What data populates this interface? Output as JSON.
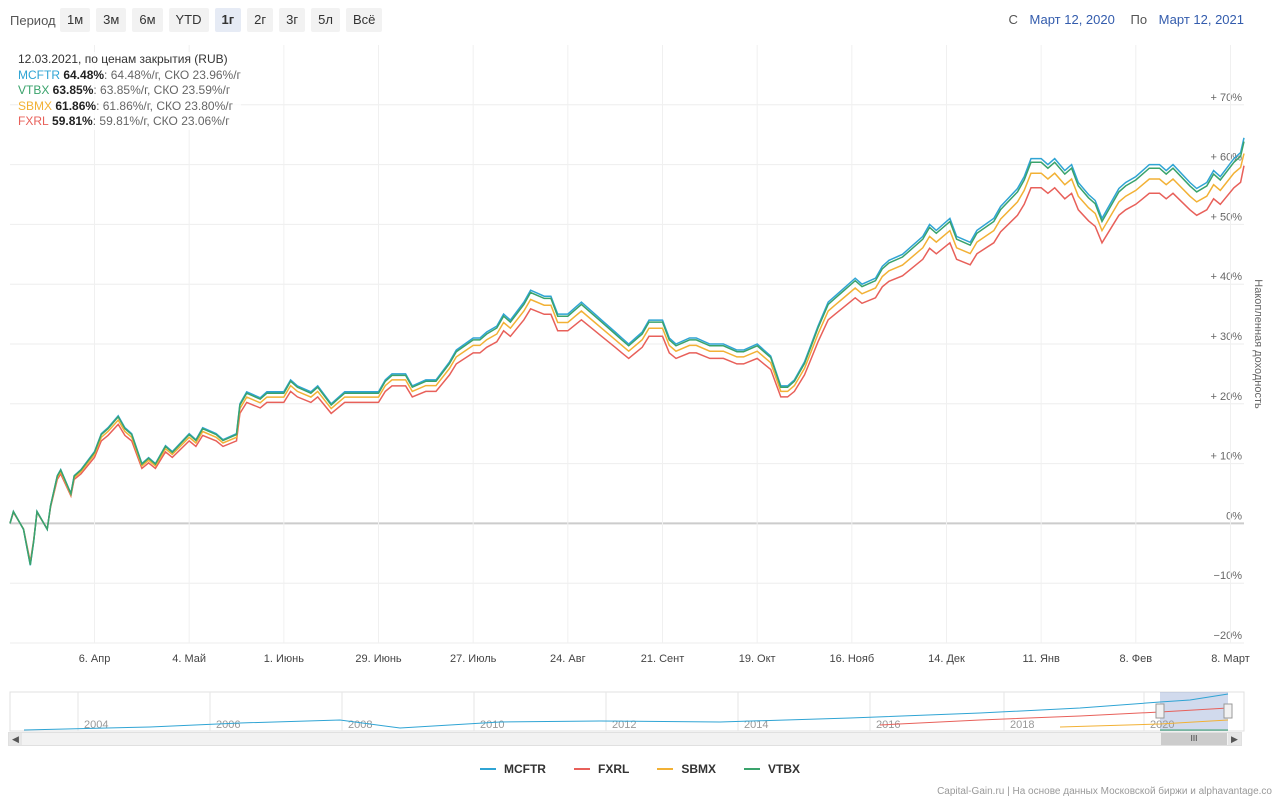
{
  "toolbar": {
    "period_label": "Период",
    "buttons": [
      "1м",
      "3м",
      "6м",
      "YTD",
      "1г",
      "2г",
      "3г",
      "5л",
      "Всё"
    ],
    "active": "1г",
    "from_label": "С",
    "from_date": "Март 12, 2020",
    "to_label": "По",
    "to_date": "Март 12, 2021"
  },
  "info": {
    "header": "12.03.2021, по ценам закрытия (RUB)",
    "rows": [
      {
        "name": "MCFTR",
        "value": "64.48%",
        "rest": ": 64.48%/г, СКО 23.96%/г",
        "color": "#2fa4d4"
      },
      {
        "name": "VTBX",
        "value": "63.85%",
        "rest": ": 63.85%/г, СКО 23.59%/г",
        "color": "#3aa36c"
      },
      {
        "name": "SBMX",
        "value": "61.86%",
        "rest": ": 61.86%/г, СКО 23.80%/г",
        "color": "#f2b135"
      },
      {
        "name": "FXRL",
        "value": "59.81%",
        "rest": ": 59.81%/г, СКО 23.06%/г",
        "color": "#e8605a"
      }
    ]
  },
  "navigator": {
    "year_labels": [
      "2004",
      "2006",
      "2008",
      "2010",
      "2012",
      "2014",
      "2016",
      "2018",
      "2020"
    ],
    "scroll_thumb": "III",
    "scroll_left": "◀",
    "scroll_right": "▶"
  },
  "legend": [
    {
      "name": "MCFTR",
      "color": "#2fa4d4"
    },
    {
      "name": "FXRL",
      "color": "#e8605a"
    },
    {
      "name": "SBMX",
      "color": "#f2b135"
    },
    {
      "name": "VTBX",
      "color": "#3aa36c"
    }
  ],
  "credits": "Capital-Gain.ru | На основе данных Московской биржи и alphavantage.co",
  "chart_data": {
    "type": "line",
    "ylabel": "Накопленная доходность",
    "ylim": [
      -20,
      80
    ],
    "y_ticks": [
      -20,
      -10,
      0,
      10,
      20,
      30,
      40,
      50,
      60,
      70
    ],
    "y_tick_labels": [
      "−20%",
      "−10%",
      "0%",
      "+ 10%",
      "+ 20%",
      "+ 30%",
      "+ 40%",
      "+ 50%",
      "+ 60%",
      "+ 70%"
    ],
    "x_range": [
      "2020-03-12",
      "2021-03-12"
    ],
    "x_ticks": [
      {
        "date": "2020-04-06",
        "label": "6. Апр"
      },
      {
        "date": "2020-05-04",
        "label": "4. Май"
      },
      {
        "date": "2020-06-01",
        "label": "1. Июнь"
      },
      {
        "date": "2020-06-29",
        "label": "29. Июнь"
      },
      {
        "date": "2020-07-27",
        "label": "27. Июль"
      },
      {
        "date": "2020-08-24",
        "label": "24. Авг"
      },
      {
        "date": "2020-09-21",
        "label": "21. Сент"
      },
      {
        "date": "2020-10-19",
        "label": "19. Окт"
      },
      {
        "date": "2020-11-16",
        "label": "16. Нояб"
      },
      {
        "date": "2020-12-14",
        "label": "14. Дек"
      },
      {
        "date": "2021-01-11",
        "label": "11. Янв"
      },
      {
        "date": "2021-02-08",
        "label": "8. Фев"
      },
      {
        "date": "2021-03-08",
        "label": "8. Март"
      }
    ],
    "base": [
      [
        "2020-03-12",
        0
      ],
      [
        "2020-03-13",
        2
      ],
      [
        "2020-03-16",
        -1
      ],
      [
        "2020-03-18",
        -7
      ],
      [
        "2020-03-19",
        -3
      ],
      [
        "2020-03-20",
        2
      ],
      [
        "2020-03-23",
        -1
      ],
      [
        "2020-03-24",
        3
      ],
      [
        "2020-03-26",
        8
      ],
      [
        "2020-03-27",
        9
      ],
      [
        "2020-03-30",
        5
      ],
      [
        "2020-03-31",
        8
      ],
      [
        "2020-04-02",
        9
      ],
      [
        "2020-04-06",
        12
      ],
      [
        "2020-04-08",
        15
      ],
      [
        "2020-04-10",
        16
      ],
      [
        "2020-04-13",
        18
      ],
      [
        "2020-04-15",
        16
      ],
      [
        "2020-04-17",
        15
      ],
      [
        "2020-04-20",
        10
      ],
      [
        "2020-04-22",
        11
      ],
      [
        "2020-04-24",
        10
      ],
      [
        "2020-04-27",
        13
      ],
      [
        "2020-04-29",
        12
      ],
      [
        "2020-05-04",
        15
      ],
      [
        "2020-05-06",
        14
      ],
      [
        "2020-05-08",
        16
      ],
      [
        "2020-05-12",
        15
      ],
      [
        "2020-05-14",
        14
      ],
      [
        "2020-05-18",
        15
      ],
      [
        "2020-05-19",
        20
      ],
      [
        "2020-05-21",
        22
      ],
      [
        "2020-05-25",
        21
      ],
      [
        "2020-05-27",
        22
      ],
      [
        "2020-06-01",
        22
      ],
      [
        "2020-06-03",
        24
      ],
      [
        "2020-06-05",
        23
      ],
      [
        "2020-06-09",
        22
      ],
      [
        "2020-06-11",
        23
      ],
      [
        "2020-06-15",
        20
      ],
      [
        "2020-06-17",
        21
      ],
      [
        "2020-06-19",
        22
      ],
      [
        "2020-06-23",
        22
      ],
      [
        "2020-06-26",
        22
      ],
      [
        "2020-06-29",
        22
      ],
      [
        "2020-07-01",
        24
      ],
      [
        "2020-07-03",
        25
      ],
      [
        "2020-07-07",
        25
      ],
      [
        "2020-07-09",
        23
      ],
      [
        "2020-07-13",
        24
      ],
      [
        "2020-07-16",
        24
      ],
      [
        "2020-07-20",
        27
      ],
      [
        "2020-07-22",
        29
      ],
      [
        "2020-07-27",
        31
      ],
      [
        "2020-07-29",
        31
      ],
      [
        "2020-07-31",
        32
      ],
      [
        "2020-08-03",
        33
      ],
      [
        "2020-08-05",
        35
      ],
      [
        "2020-08-07",
        34
      ],
      [
        "2020-08-11",
        37
      ],
      [
        "2020-08-13",
        39
      ],
      [
        "2020-08-17",
        38
      ],
      [
        "2020-08-19",
        38
      ],
      [
        "2020-08-21",
        35
      ],
      [
        "2020-08-24",
        35
      ],
      [
        "2020-08-26",
        36
      ],
      [
        "2020-08-28",
        37
      ],
      [
        "2020-09-01",
        35
      ],
      [
        "2020-09-03",
        34
      ],
      [
        "2020-09-07",
        32
      ],
      [
        "2020-09-09",
        31
      ],
      [
        "2020-09-11",
        30
      ],
      [
        "2020-09-15",
        32
      ],
      [
        "2020-09-17",
        34
      ],
      [
        "2020-09-21",
        34
      ],
      [
        "2020-09-23",
        31
      ],
      [
        "2020-09-25",
        30
      ],
      [
        "2020-09-29",
        31
      ],
      [
        "2020-10-01",
        31
      ],
      [
        "2020-10-05",
        30
      ],
      [
        "2020-10-07",
        30
      ],
      [
        "2020-10-09",
        30
      ],
      [
        "2020-10-13",
        29
      ],
      [
        "2020-10-15",
        29
      ],
      [
        "2020-10-19",
        30
      ],
      [
        "2020-10-21",
        29
      ],
      [
        "2020-10-23",
        28
      ],
      [
        "2020-10-26",
        23
      ],
      [
        "2020-10-28",
        23
      ],
      [
        "2020-10-30",
        24
      ],
      [
        "2020-11-02",
        27
      ],
      [
        "2020-11-04",
        30
      ],
      [
        "2020-11-06",
        33
      ],
      [
        "2020-11-09",
        37
      ],
      [
        "2020-11-11",
        38
      ],
      [
        "2020-11-13",
        39
      ],
      [
        "2020-11-17",
        41
      ],
      [
        "2020-11-19",
        40
      ],
      [
        "2020-11-23",
        41
      ],
      [
        "2020-11-25",
        43
      ],
      [
        "2020-11-27",
        44
      ],
      [
        "2020-12-01",
        45
      ],
      [
        "2020-12-03",
        46
      ],
      [
        "2020-12-07",
        48
      ],
      [
        "2020-12-09",
        50
      ],
      [
        "2020-12-11",
        49
      ],
      [
        "2020-12-15",
        51
      ],
      [
        "2020-12-17",
        48
      ],
      [
        "2020-12-21",
        47
      ],
      [
        "2020-12-23",
        49
      ],
      [
        "2020-12-28",
        51
      ],
      [
        "2020-12-30",
        53
      ],
      [
        "2021-01-04",
        56
      ],
      [
        "2021-01-06",
        58
      ],
      [
        "2021-01-08",
        61
      ],
      [
        "2021-01-11",
        61
      ],
      [
        "2021-01-13",
        60
      ],
      [
        "2021-01-15",
        61
      ],
      [
        "2021-01-18",
        59
      ],
      [
        "2021-01-20",
        60
      ],
      [
        "2021-01-22",
        57
      ],
      [
        "2021-01-25",
        55
      ],
      [
        "2021-01-27",
        54
      ],
      [
        "2021-01-29",
        51
      ],
      [
        "2021-02-01",
        54
      ],
      [
        "2021-02-03",
        56
      ],
      [
        "2021-02-05",
        57
      ],
      [
        "2021-02-08",
        58
      ],
      [
        "2021-02-10",
        59
      ],
      [
        "2021-02-12",
        60
      ],
      [
        "2021-02-15",
        60
      ],
      [
        "2021-02-17",
        59
      ],
      [
        "2021-02-19",
        60
      ],
      [
        "2021-02-24",
        57
      ],
      [
        "2021-02-26",
        56
      ],
      [
        "2021-03-01",
        57
      ],
      [
        "2021-03-03",
        59
      ],
      [
        "2021-03-05",
        58
      ],
      [
        "2021-03-09",
        61
      ],
      [
        "2021-03-11",
        62
      ],
      [
        "2021-03-12",
        64
      ]
    ],
    "series": [
      {
        "name": "MCFTR",
        "color": "#2fa4d4",
        "scale": 1.0,
        "final": 64.48
      },
      {
        "name": "VTBX",
        "color": "#3aa36c",
        "scale": 0.99,
        "final": 63.85
      },
      {
        "name": "SBMX",
        "color": "#f2b135",
        "scale": 0.96,
        "final": 61.86
      },
      {
        "name": "FXRL",
        "color": "#e8605a",
        "scale": 0.92,
        "final": 59.81
      }
    ]
  }
}
